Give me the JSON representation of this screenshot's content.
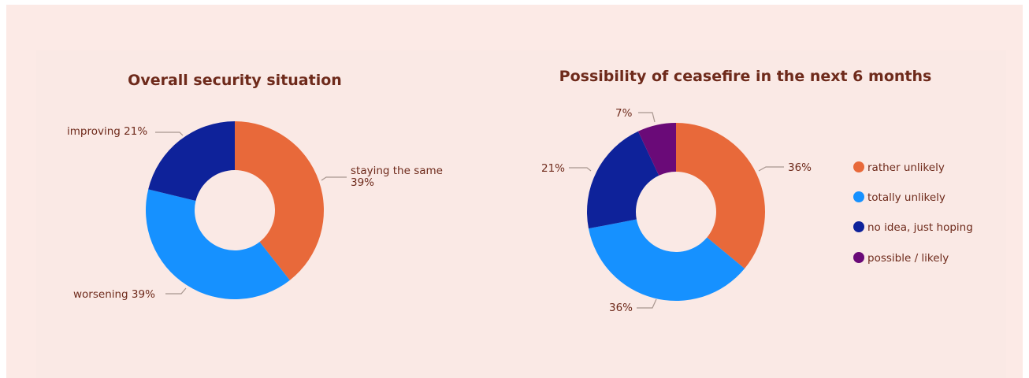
{
  "colors": {
    "rather_unlikely": "#e8693a",
    "totally_unlikely": "#1691ff",
    "no_idea": "#0e229a",
    "possible_likely": "#6a0a78"
  },
  "chart_data": [
    {
      "type": "pie",
      "donut": true,
      "title": "Overall security situation",
      "slices": [
        {
          "label": "staying the same",
          "value": 39,
          "display": "39%",
          "color": "#e8693a"
        },
        {
          "label": "worsening",
          "value": 39,
          "display": "39%",
          "color": "#1691ff"
        },
        {
          "label": "improving",
          "value": 21,
          "display": "21%",
          "color": "#0e229a"
        }
      ],
      "labels": {
        "improving": "improving 21%",
        "staying_line1": "staying the same",
        "staying_line2": "39%",
        "worsening": "worsening 39%"
      }
    },
    {
      "type": "pie",
      "donut": true,
      "title": "Possibility of ceasefire in the next 6 months",
      "slices": [
        {
          "label": "rather unlikely",
          "value": 36,
          "display": "36%",
          "color": "#e8693a"
        },
        {
          "label": "totally unlikely",
          "value": 36,
          "display": "36%",
          "color": "#1691ff"
        },
        {
          "label": "no idea, just hoping",
          "value": 21,
          "display": "21%",
          "color": "#0e229a"
        },
        {
          "label": "possible / likely",
          "value": 7,
          "display": "7%",
          "color": "#6a0a78"
        }
      ],
      "legend": {
        "position": "right",
        "items": [
          "rather unlikely",
          "totally unlikely",
          "no idea, just hoping",
          "possible / likely"
        ]
      }
    }
  ]
}
